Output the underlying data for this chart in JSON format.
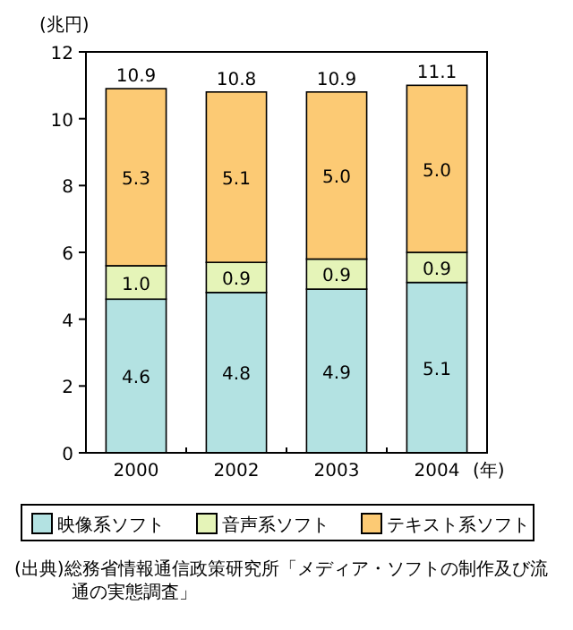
{
  "chart_data": {
    "type": "bar",
    "stacked": true,
    "categories": [
      "2000",
      "2002",
      "2003",
      "2004"
    ],
    "xlabel": "(年)",
    "ylabel": "(兆円)",
    "ylim": [
      0,
      12
    ],
    "yticks": [
      0,
      2,
      4,
      6,
      8,
      10,
      12
    ],
    "series": [
      {
        "name": "映像系ソフト",
        "color": "#b3e2e2",
        "values": [
          4.6,
          4.8,
          4.9,
          5.1
        ],
        "value_labels": [
          "4.6",
          "4.8",
          "4.9",
          "5.1"
        ]
      },
      {
        "name": "音声系ソフト",
        "color": "#e5f4b8",
        "values": [
          1.0,
          0.9,
          0.9,
          0.9
        ],
        "value_labels": [
          "1.0",
          "0.9",
          "0.9",
          "0.9"
        ]
      },
      {
        "name": "テキスト系ソフト",
        "color": "#fcca74",
        "values": [
          5.3,
          5.1,
          5.0,
          5.0
        ],
        "value_labels": [
          "5.3",
          "5.1",
          "5.0",
          "5.0"
        ]
      }
    ],
    "totals": [
      "10.9",
      "10.8",
      "10.9",
      "11.1"
    ],
    "legend": "bottom",
    "grid": false,
    "annotations": [
      "(出典)総務省情報通信政策研究所「メディア・ソフトの制作及び流通の実態調査」"
    ]
  }
}
